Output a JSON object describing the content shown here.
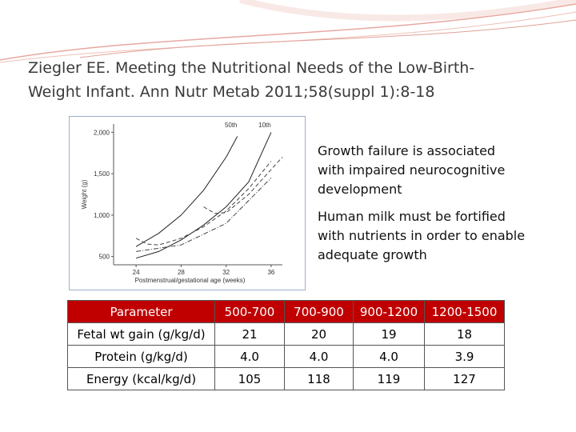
{
  "header": {
    "title_lines": [
      "Ziegler EE. Meeting the Nutritional Needs of the Low-Birth-",
      "Weight Infant. Ann Nutr Metab 2011;58(suppl 1):8-18"
    ]
  },
  "figure": {
    "chart_data": {
      "type": "line",
      "ylabel": "Weight (g)",
      "xlabel": "Postmenstrual/gestational age (weeks)",
      "xlim": [
        22,
        37
      ],
      "xticks": [
        24,
        28,
        32,
        36
      ],
      "ylim": [
        400,
        2100
      ],
      "yticks": [
        {
          "value": 2000,
          "label": "2,000"
        },
        {
          "value": 1500,
          "label": "1,500"
        },
        {
          "value": 1000,
          "label": "1,000"
        },
        500
      ],
      "series": [
        {
          "label": "50th",
          "dash": "solid",
          "color": "#222222",
          "x": [
            24,
            26,
            28,
            30,
            32,
            33
          ],
          "values": [
            620,
            780,
            1000,
            1300,
            1700,
            1950
          ]
        },
        {
          "label": "10th",
          "dash": "solid",
          "color": "#222222",
          "x": [
            24,
            26,
            28,
            30,
            32,
            34,
            36
          ],
          "values": [
            480,
            560,
            700,
            880,
            1100,
            1400,
            2000
          ]
        },
        {
          "dash": "dashed",
          "color": "#444444",
          "x": [
            24,
            25,
            26,
            28,
            30,
            32,
            34,
            36
          ],
          "values": [
            720,
            650,
            640,
            720,
            860,
            1050,
            1320,
            1650
          ]
        },
        {
          "dash": "dashed",
          "color": "#444444",
          "x": [
            30,
            31,
            32,
            34,
            36,
            37
          ],
          "values": [
            1100,
            1020,
            1030,
            1250,
            1550,
            1700
          ]
        },
        {
          "dash": "dashdot",
          "color": "#444444",
          "x": [
            24,
            28,
            32,
            36
          ],
          "values": [
            560,
            640,
            900,
            1450
          ]
        }
      ]
    }
  },
  "bullets": [
    "Growth failure is associated with impaired neurocognitive development",
    "Human milk must be fortified with nutrients in order to enable adequate growth"
  ],
  "table": {
    "header": [
      "Parameter",
      "500-700",
      "700-900",
      "900-1200",
      "1200-1500"
    ],
    "rows": [
      [
        "Fetal wt gain (g/kg/d)",
        "21",
        "20",
        "19",
        "18"
      ],
      [
        "Protein (g/kg/d)",
        "4.0",
        "4.0",
        "4.0",
        "3.9"
      ],
      [
        "Energy (kcal/kg/d)",
        "105",
        "118",
        "119",
        "127"
      ]
    ]
  }
}
